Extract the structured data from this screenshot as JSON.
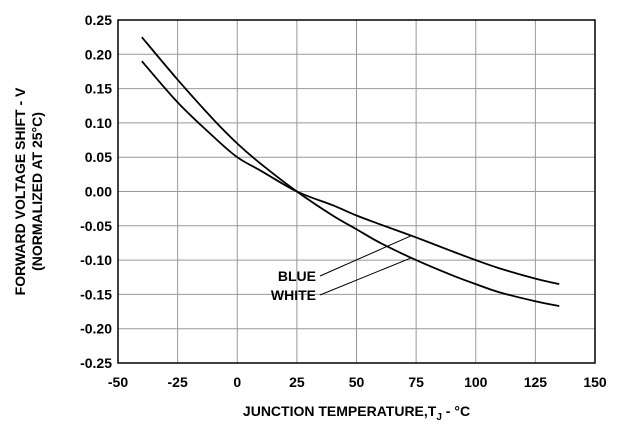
{
  "chart_data": {
    "type": "line",
    "title": "",
    "xlabel_main": "JUNCTION TEMPERATURE,T",
    "xlabel_sub": "J",
    "xlabel_tail": " - °C",
    "ylabel_line1": "FORWARD VOLTAGE SHIFT - V",
    "ylabel_line2": "(NORMALIZED AT 25°C)",
    "xlim": [
      -50,
      150
    ],
    "ylim": [
      -0.25,
      0.25
    ],
    "grid": true,
    "x_ticks": [
      "-50",
      "-25",
      "0",
      "25",
      "50",
      "75",
      "100",
      "125",
      "150"
    ],
    "y_ticks": [
      "0.25",
      "0.20",
      "0.15",
      "0.10",
      "0.05",
      "0.00",
      "-0.05",
      "-0.10",
      "-0.15",
      "-0.20",
      "-0.25"
    ],
    "series": [
      {
        "name": "BLUE",
        "x": [
          -40,
          -25,
          -10,
          0,
          10,
          25,
          40,
          50,
          60,
          75,
          90,
          100,
          110,
          125,
          135
        ],
        "y": [
          0.19,
          0.13,
          0.08,
          0.05,
          0.03,
          0.0,
          -0.02,
          -0.035,
          -0.048,
          -0.067,
          -0.087,
          -0.1,
          -0.112,
          -0.127,
          -0.135
        ]
      },
      {
        "name": "WHITE",
        "x": [
          -40,
          -25,
          -10,
          0,
          10,
          25,
          40,
          50,
          60,
          75,
          90,
          100,
          110,
          125,
          135
        ],
        "y": [
          0.225,
          0.163,
          0.105,
          0.07,
          0.04,
          0.0,
          -0.035,
          -0.055,
          -0.075,
          -0.1,
          -0.122,
          -0.135,
          -0.147,
          -0.16,
          -0.167
        ]
      }
    ],
    "annotations": [
      {
        "text": "BLUE",
        "series": "BLUE",
        "anchor_x": 73
      },
      {
        "text": "WHITE",
        "series": "WHITE",
        "anchor_x": 73
      }
    ]
  }
}
